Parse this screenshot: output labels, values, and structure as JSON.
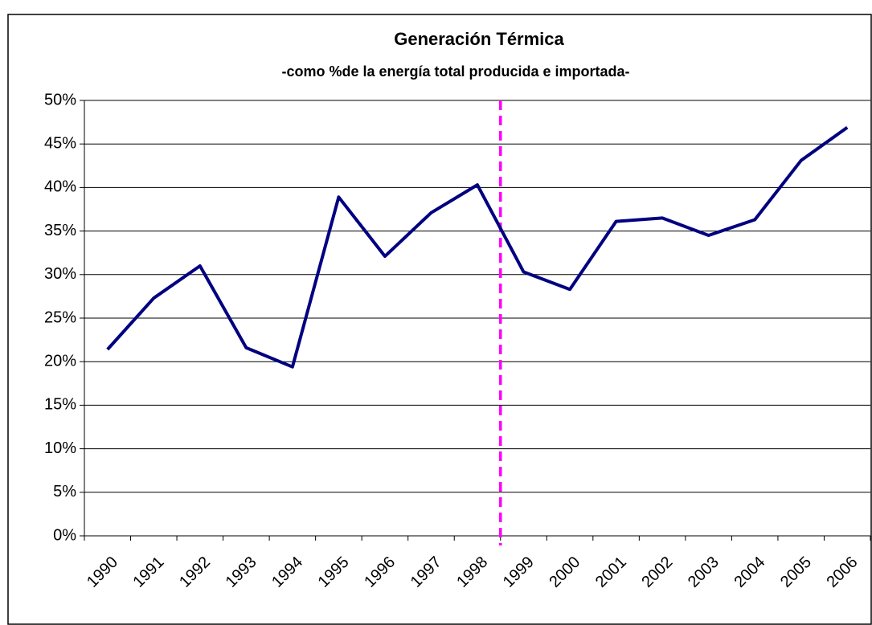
{
  "chart_data": {
    "type": "line",
    "title": "Generación Térmica",
    "subtitle": "-como %de la energía total producida e importada-",
    "categories": [
      "1990",
      "1991",
      "1992",
      "1993",
      "1994",
      "1995",
      "1996",
      "1997",
      "1998",
      "1999",
      "2000",
      "2001",
      "2002",
      "2003",
      "2004",
      "2005",
      "2006"
    ],
    "series": [
      {
        "name": "Generación Térmica",
        "color": "#000080",
        "values": [
          21.4,
          27.3,
          31.0,
          21.6,
          19.4,
          38.9,
          32.1,
          37.1,
          40.3,
          30.3,
          28.3,
          36.1,
          36.5,
          34.5,
          36.3,
          43.1,
          46.9
        ]
      }
    ],
    "ylim": [
      0,
      50
    ],
    "yticks": [
      {
        "value": 0,
        "label": "0%"
      },
      {
        "value": 5,
        "label": "5%"
      },
      {
        "value": 10,
        "label": "10%"
      },
      {
        "value": 15,
        "label": "15%"
      },
      {
        "value": 20,
        "label": "20%"
      },
      {
        "value": 25,
        "label": "25%"
      },
      {
        "value": 30,
        "label": "30%"
      },
      {
        "value": 35,
        "label": "35%"
      },
      {
        "value": 40,
        "label": "40%"
      },
      {
        "value": 45,
        "label": "45%"
      },
      {
        "value": 50,
        "label": "50%"
      }
    ],
    "grid": true
  }
}
